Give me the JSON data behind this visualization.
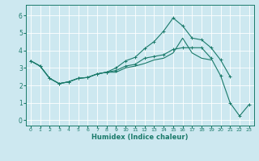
{
  "title": "",
  "xlabel": "Humidex (Indice chaleur)",
  "ylabel": "",
  "xlim": [
    -0.5,
    23.5
  ],
  "ylim": [
    -0.3,
    6.6
  ],
  "xticks": [
    0,
    1,
    2,
    3,
    4,
    5,
    6,
    7,
    8,
    9,
    10,
    11,
    12,
    13,
    14,
    15,
    16,
    17,
    18,
    19,
    20,
    21,
    22,
    23
  ],
  "yticks": [
    0,
    1,
    2,
    3,
    4,
    5,
    6
  ],
  "bg_color": "#cde8f0",
  "line_color": "#1a7a6a",
  "grid_color": "#ffffff",
  "grid_lw": 0.6,
  "lines": [
    {
      "x": [
        0,
        1,
        2,
        3,
        4,
        5,
        6,
        7,
        8,
        9,
        10,
        11,
        12,
        13,
        14,
        15,
        16,
        17,
        18,
        19,
        20,
        21,
        22,
        23
      ],
      "y": [
        3.4,
        3.1,
        2.4,
        2.1,
        2.2,
        2.4,
        2.45,
        2.65,
        2.75,
        2.85,
        3.1,
        3.2,
        3.55,
        3.65,
        3.75,
        4.05,
        4.15,
        4.15,
        4.15,
        3.55,
        2.55,
        1.0,
        0.25,
        0.9
      ],
      "marker": true
    },
    {
      "x": [
        0,
        1,
        2,
        3,
        4,
        5,
        6,
        7,
        8,
        9,
        10,
        11,
        12,
        13,
        14,
        15,
        16,
        17,
        18,
        19,
        20,
        21,
        22,
        23
      ],
      "y": [
        3.4,
        3.1,
        2.4,
        2.1,
        2.2,
        2.4,
        2.45,
        2.65,
        2.75,
        3.0,
        3.4,
        3.6,
        4.1,
        4.5,
        5.1,
        5.85,
        5.4,
        4.7,
        4.6,
        4.15,
        3.45,
        2.5,
        null,
        null
      ],
      "marker": true
    },
    {
      "x": [
        0,
        1,
        2,
        3,
        4,
        5,
        6,
        7,
        8,
        9,
        10,
        11,
        12,
        13,
        14,
        15,
        16,
        17,
        18,
        19,
        20
      ],
      "y": [
        3.4,
        3.1,
        2.4,
        2.1,
        2.2,
        2.4,
        2.45,
        2.65,
        2.75,
        2.75,
        3.0,
        3.1,
        3.25,
        3.45,
        3.55,
        3.85,
        4.7,
        3.85,
        3.55,
        3.45,
        null
      ],
      "marker": false
    }
  ]
}
